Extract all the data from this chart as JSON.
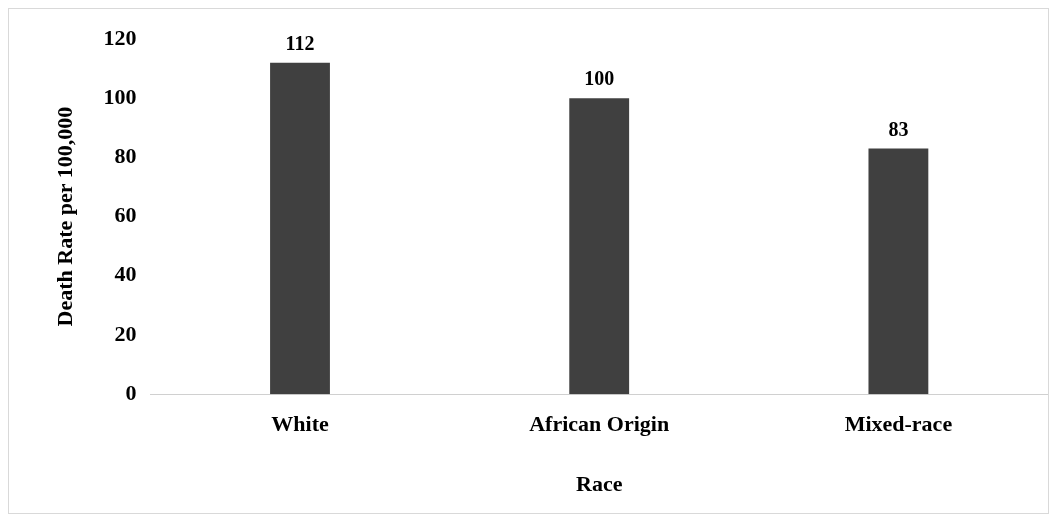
{
  "chart_data": {
    "type": "bar",
    "xlabel": "Race",
    "ylabel": "Death Rate per 100,000",
    "categories": [
      "White",
      "African Origin",
      "Mixed-race"
    ],
    "values": [
      112,
      100,
      83
    ],
    "color": "#404040",
    "ylim": [
      0,
      120
    ],
    "yticks": [
      0,
      20,
      40,
      60,
      80,
      100,
      120
    ],
    "data_labels": true,
    "grid": false,
    "legend": false
  }
}
